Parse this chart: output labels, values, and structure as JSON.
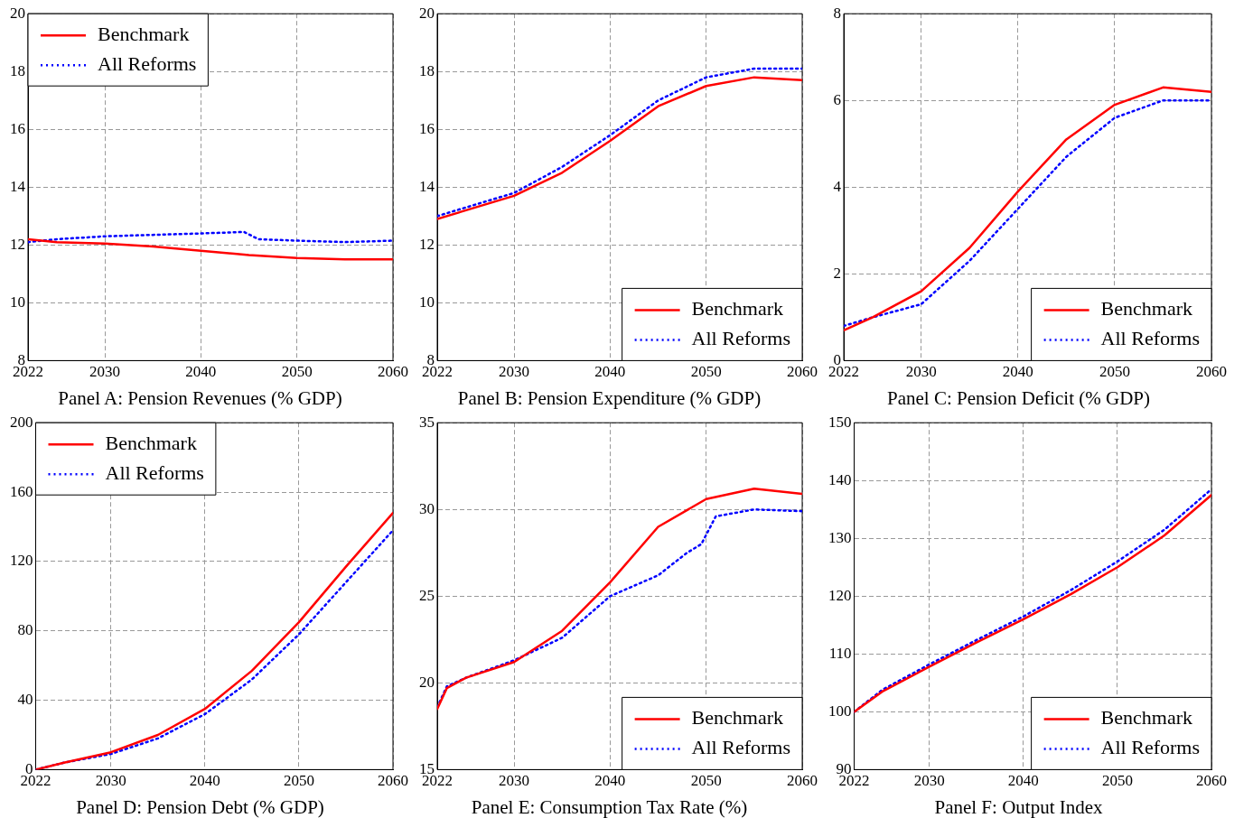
{
  "chart_data": [
    {
      "type": "line",
      "title": "Panel A: Pension Revenues (% GDP)",
      "x": [
        2022,
        2025,
        2030,
        2035,
        2040,
        2045,
        2050,
        2055,
        2060
      ],
      "xlim": [
        2022,
        2060
      ],
      "xticks": [
        2022,
        2030,
        2040,
        2050,
        2060
      ],
      "ylim": [
        8,
        20
      ],
      "yticks": [
        8,
        10,
        12,
        14,
        16,
        18,
        20
      ],
      "grid": true,
      "legend": "top left",
      "series": [
        {
          "name": "Benchmark",
          "color": "#ff0000",
          "line_style": "solid",
          "values": [
            12.2,
            12.1,
            12.05,
            11.95,
            11.8,
            11.65,
            11.55,
            11.5,
            11.5
          ]
        },
        {
          "name": "All Reforms",
          "color": "#0000ff",
          "line_style": "dotted",
          "x": [
            2022,
            2025,
            2030,
            2035,
            2040,
            2044.5,
            2046,
            2050,
            2055,
            2060
          ],
          "values": [
            12.1,
            12.2,
            12.3,
            12.35,
            12.4,
            12.45,
            12.2,
            12.15,
            12.1,
            12.15
          ]
        }
      ]
    },
    {
      "type": "line",
      "title": "Panel B: Pension Expenditure (% GDP)",
      "x": [
        2022,
        2025,
        2030,
        2035,
        2040,
        2045,
        2050,
        2055,
        2060
      ],
      "xlim": [
        2022,
        2060
      ],
      "xticks": [
        2022,
        2030,
        2040,
        2050,
        2060
      ],
      "ylim": [
        8,
        20
      ],
      "yticks": [
        8,
        10,
        12,
        14,
        16,
        18,
        20
      ],
      "grid": true,
      "legend": "bottom right",
      "series": [
        {
          "name": "Benchmark",
          "color": "#ff0000",
          "line_style": "solid",
          "values": [
            12.9,
            13.2,
            13.7,
            14.5,
            15.6,
            16.8,
            17.5,
            17.8,
            17.7
          ]
        },
        {
          "name": "All Reforms",
          "color": "#0000ff",
          "line_style": "dotted",
          "values": [
            13.0,
            13.3,
            13.8,
            14.7,
            15.8,
            17.0,
            17.8,
            18.1,
            18.1
          ]
        }
      ]
    },
    {
      "type": "line",
      "title": "Panel C: Pension Deficit (% GDP)",
      "x": [
        2022,
        2025,
        2030,
        2035,
        2040,
        2045,
        2050,
        2055,
        2060
      ],
      "xlim": [
        2022,
        2060
      ],
      "xticks": [
        2022,
        2030,
        2040,
        2050,
        2060
      ],
      "ylim": [
        0,
        8
      ],
      "yticks": [
        0,
        2,
        4,
        6,
        8
      ],
      "grid": true,
      "legend": "bottom right",
      "series": [
        {
          "name": "Benchmark",
          "color": "#ff0000",
          "line_style": "solid",
          "values": [
            0.7,
            1.0,
            1.6,
            2.6,
            3.9,
            5.1,
            5.9,
            6.3,
            6.2
          ]
        },
        {
          "name": "All Reforms",
          "color": "#0000ff",
          "line_style": "dotted",
          "values": [
            0.8,
            1.0,
            1.3,
            2.3,
            3.5,
            4.7,
            5.6,
            6.0,
            6.0
          ]
        }
      ]
    },
    {
      "type": "line",
      "title": "Panel D: Pension Debt (% GDP)",
      "x": [
        2022,
        2025,
        2030,
        2035,
        2040,
        2045,
        2050,
        2055,
        2060
      ],
      "xlim": [
        2022,
        2060
      ],
      "xticks": [
        2022,
        2030,
        2040,
        2050,
        2060
      ],
      "ylim": [
        0,
        200
      ],
      "yticks": [
        0,
        40,
        80,
        120,
        160,
        200
      ],
      "grid": true,
      "legend": "top left",
      "series": [
        {
          "name": "Benchmark",
          "color": "#ff0000",
          "line_style": "solid",
          "values": [
            0,
            4,
            10,
            20,
            35,
            57,
            85,
            117,
            148
          ]
        },
        {
          "name": "All Reforms",
          "color": "#0000ff",
          "line_style": "dotted",
          "values": [
            0,
            4,
            9,
            18,
            32,
            52,
            78,
            108,
            138
          ]
        }
      ]
    },
    {
      "type": "line",
      "title": "Panel E: Consumption Tax Rate (%)",
      "x": [
        2022,
        2023,
        2025,
        2030,
        2035,
        2040,
        2045,
        2050,
        2055,
        2060
      ],
      "xlim": [
        2022,
        2060
      ],
      "xticks": [
        2022,
        2030,
        2040,
        2050,
        2060
      ],
      "ylim": [
        15,
        35
      ],
      "yticks": [
        15,
        20,
        25,
        30,
        35
      ],
      "grid": true,
      "legend": "bottom right",
      "series": [
        {
          "name": "Benchmark",
          "color": "#ff0000",
          "line_style": "solid",
          "values": [
            18.5,
            19.7,
            20.3,
            21.2,
            23.0,
            25.8,
            29.0,
            30.6,
            31.2,
            30.9
          ]
        },
        {
          "name": "All Reforms",
          "color": "#0000ff",
          "line_style": "dotted",
          "x": [
            2022,
            2023,
            2025,
            2030,
            2035,
            2040,
            2045,
            2048,
            2049.5,
            2051,
            2055,
            2060
          ],
          "values": [
            18.6,
            19.8,
            20.3,
            21.3,
            22.6,
            25.0,
            26.2,
            27.5,
            28.0,
            29.6,
            30.0,
            29.9
          ]
        }
      ]
    },
    {
      "type": "line",
      "title": "Panel F: Output Index",
      "x": [
        2022,
        2025,
        2030,
        2035,
        2040,
        2045,
        2050,
        2055,
        2060
      ],
      "xlim": [
        2022,
        2060
      ],
      "xticks": [
        2022,
        2030,
        2040,
        2050,
        2060
      ],
      "ylim": [
        90,
        150
      ],
      "yticks": [
        90,
        100,
        110,
        120,
        130,
        140,
        150
      ],
      "grid": true,
      "legend": "bottom right",
      "series": [
        {
          "name": "Benchmark",
          "color": "#ff0000",
          "line_style": "solid",
          "values": [
            100,
            103.5,
            107.8,
            112,
            116,
            120.3,
            125,
            130.5,
            137.5
          ]
        },
        {
          "name": "All Reforms",
          "color": "#0000ff",
          "line_style": "dotted",
          "values": [
            100,
            103.8,
            108.2,
            112.4,
            116.5,
            121,
            126,
            131.5,
            138.5
          ]
        }
      ]
    }
  ]
}
